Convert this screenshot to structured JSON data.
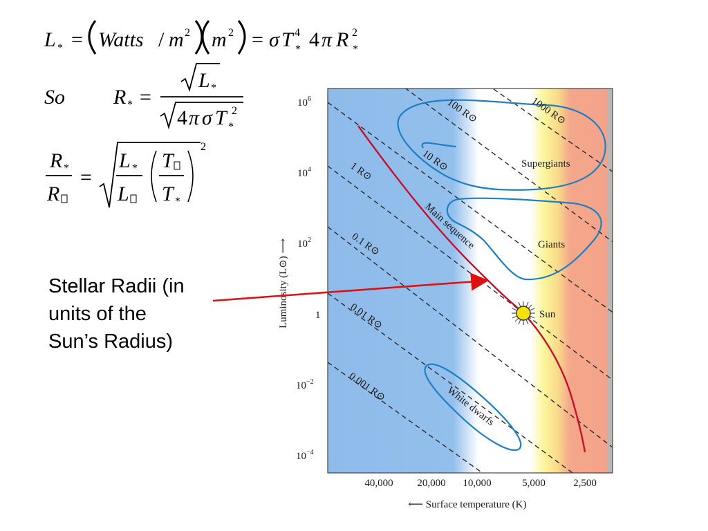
{
  "equations": {
    "eq1": {
      "lhs": "L",
      "sub_star": "*",
      "equals": "=",
      "watts": "Watts",
      "slash": "/",
      "m": "m",
      "exp2": "2",
      "sigma": "σ",
      "T": "T",
      "exp4": "4",
      "four": "4",
      "pi": "π",
      "R": "R"
    },
    "eq2": {
      "so": "So",
      "R": "R",
      "sub_star": "*",
      "equals": "=",
      "L": "L",
      "four": "4",
      "pi": "π",
      "sigma": "σ",
      "T": "T",
      "exp2": "2"
    },
    "eq3": {
      "R": "R",
      "L": "L",
      "T": "T",
      "sub_star": "*",
      "sub_sun": "",
      "equals": "=",
      "exp2": "2"
    }
  },
  "caption": {
    "line1": "Stellar Radii (in",
    "line2": "units of the",
    "line3": "Sun’s Radius)"
  },
  "hr_diagram": {
    "y_axis_label": "Luminosity (L⊙) ⟶",
    "x_axis_label": "⟵ Surface temperature (K)",
    "y_ticks": [
      {
        "base": "10",
        "exp": "6"
      },
      {
        "base": "10",
        "exp": "4"
      },
      {
        "base": "10",
        "exp": "2"
      },
      {
        "base": "1",
        "exp": ""
      },
      {
        "base": "10",
        "exp": "−2"
      },
      {
        "base": "10",
        "exp": "−4"
      }
    ],
    "x_ticks": [
      "40,000",
      "20,000",
      "10,000",
      "5,000",
      "2,500"
    ],
    "radius_lines": [
      "1000 R⊙",
      "100 R⊙",
      "10 R⊙",
      "1 R⊙",
      "0.1 R⊙",
      "0.01 R⊙",
      "0.001 R⊙"
    ],
    "regions": {
      "supergiants": "Supergiants",
      "giants": "Giants",
      "main_sequence": "Main sequence",
      "white_dwarfs": "White dwarfs",
      "sun": "Sun"
    },
    "colors": {
      "hot_blue": "#8ebbea",
      "yellow": "#fbf59a",
      "orange": "#f7c07b",
      "red": "#f3a38a",
      "gray": "#b7b7b7",
      "region_outline": "#1e7fc3",
      "main_sequence_line": "#c8102e",
      "arrow": "#e01010",
      "sun_fill": "#f5e20a"
    }
  }
}
